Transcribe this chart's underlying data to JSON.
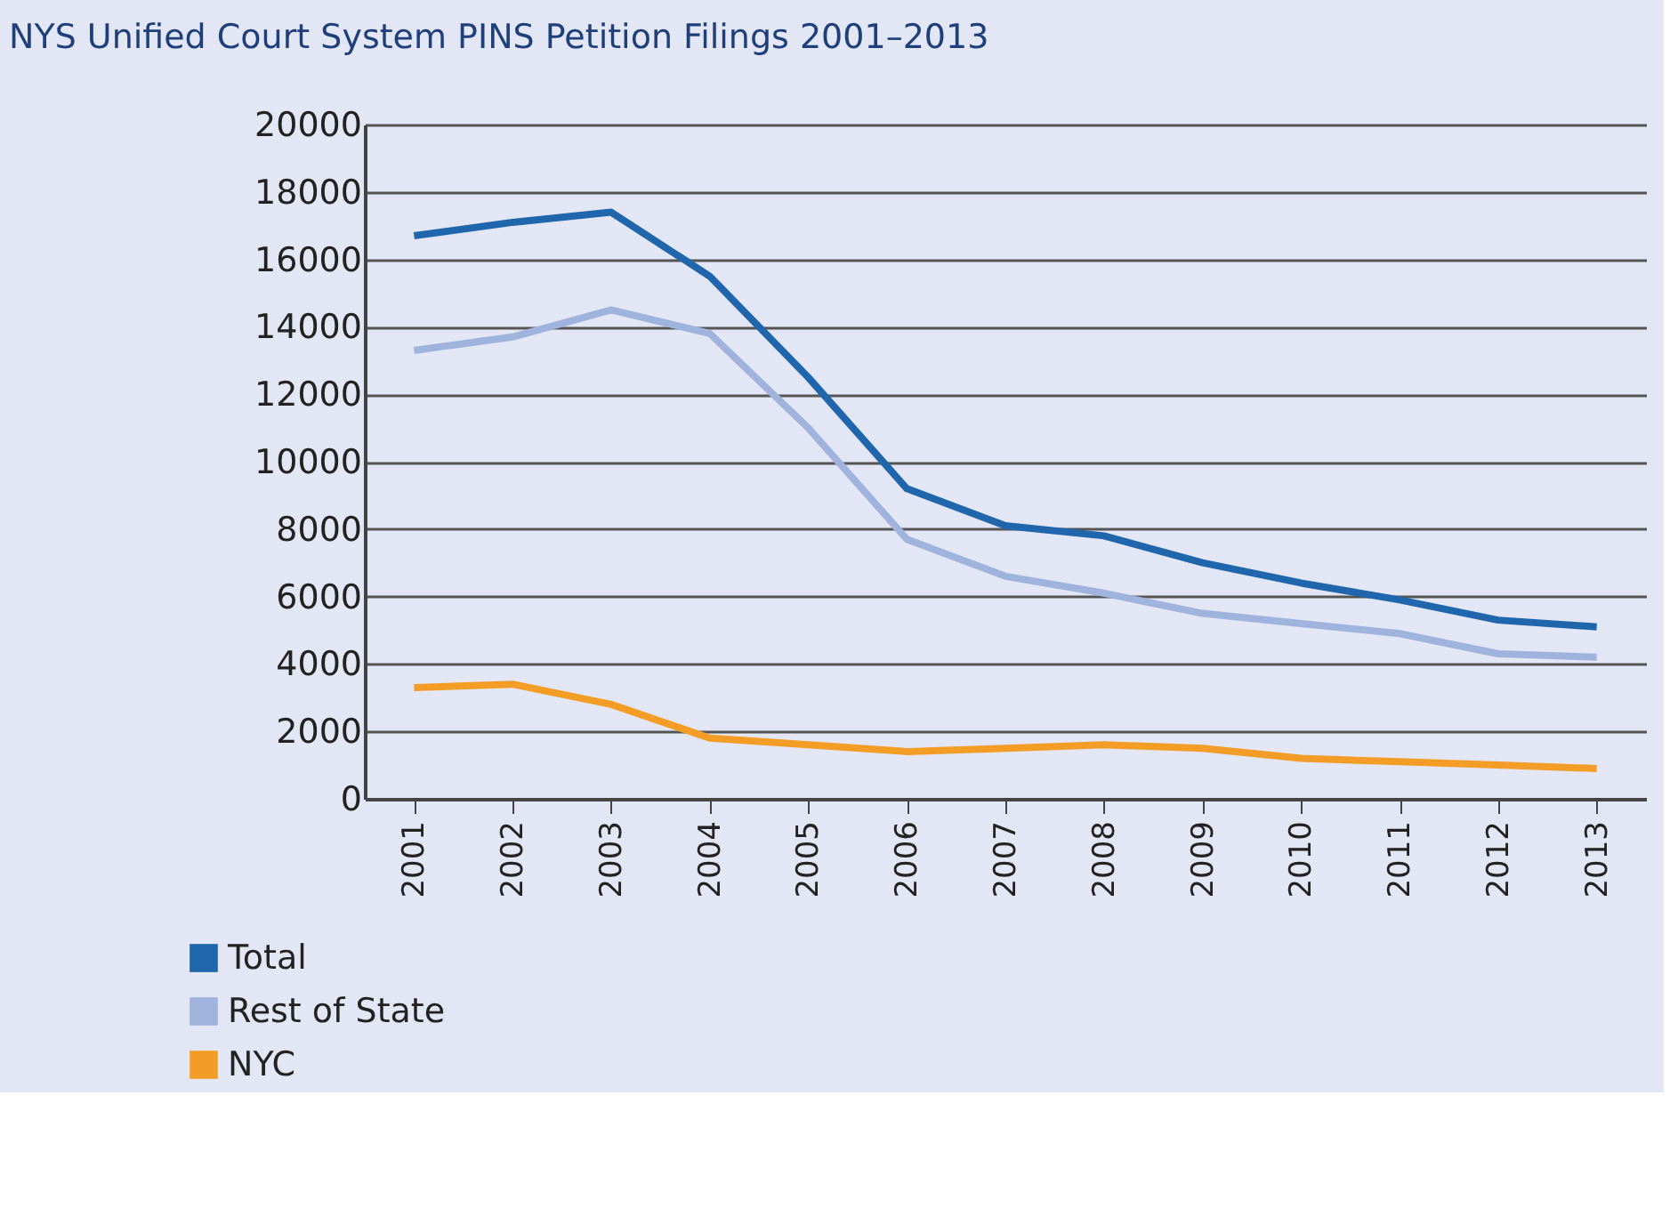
{
  "chart_data": {
    "type": "line",
    "title": "NYS Unified Court System PINS Petition Filings 2001–2013",
    "categories": [
      "2001",
      "2002",
      "2003",
      "2004",
      "2005",
      "2006",
      "2007",
      "2008",
      "2009",
      "2010",
      "2011",
      "2012",
      "2013"
    ],
    "series": [
      {
        "name": "Total",
        "color": "#1f66ad",
        "values": [
          16700,
          17100,
          17400,
          15500,
          12500,
          9200,
          8100,
          7800,
          7000,
          6400,
          5900,
          5300,
          5100
        ]
      },
      {
        "name": "Rest of State",
        "color": "#9fb3dd",
        "values": [
          13300,
          13700,
          14500,
          13800,
          11000,
          7700,
          6600,
          6100,
          5500,
          5200,
          4900,
          4300,
          4200
        ]
      },
      {
        "name": "NYC",
        "color": "#f39c26",
        "values": [
          3300,
          3400,
          2800,
          1800,
          1600,
          1400,
          1500,
          1600,
          1500,
          1200,
          1100,
          1000,
          900
        ]
      }
    ],
    "ylim": [
      0,
      20000
    ],
    "yticks": [
      0,
      2000,
      4000,
      6000,
      8000,
      10000,
      12000,
      14000,
      16000,
      18000,
      20000
    ],
    "grid": "y",
    "legend": "bottom left",
    "marker": "none",
    "line_style": "solid"
  }
}
